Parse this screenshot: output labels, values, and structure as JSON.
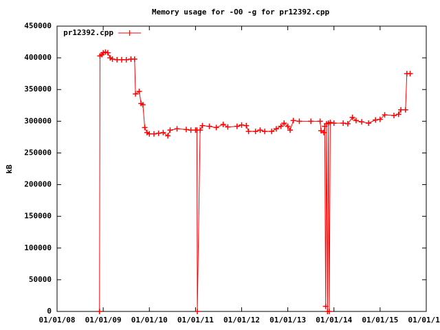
{
  "chart_data": {
    "type": "line",
    "title": "Memory usage for -O0 -g for pr12392.cpp",
    "ylabel": "kB",
    "xlim": [
      2008,
      2016
    ],
    "xticks": [
      {
        "value": 2008,
        "label": "01/01/08"
      },
      {
        "value": 2009,
        "label": "01/01/09"
      },
      {
        "value": 2010,
        "label": "01/01/10"
      },
      {
        "value": 2011,
        "label": "01/01/11"
      },
      {
        "value": 2012,
        "label": "01/01/12"
      },
      {
        "value": 2013,
        "label": "01/01/13"
      },
      {
        "value": 2014,
        "label": "01/01/14"
      },
      {
        "value": 2015,
        "label": "01/01/15"
      },
      {
        "value": 2016,
        "label": "01/01/16"
      }
    ],
    "ylim": [
      0,
      450000
    ],
    "yticks": [
      0,
      50000,
      100000,
      150000,
      200000,
      250000,
      300000,
      350000,
      400000,
      450000
    ],
    "grid": false,
    "legend": "top-left",
    "series": [
      {
        "name": "pr12392.cpp",
        "color": "#ff0000",
        "x": [
          2008.92,
          2008.93,
          2008.97,
          2009.0,
          2009.05,
          2009.1,
          2009.15,
          2009.2,
          2009.3,
          2009.4,
          2009.5,
          2009.6,
          2009.68,
          2009.7,
          2009.78,
          2009.82,
          2009.86,
          2009.9,
          2009.95,
          2010.0,
          2010.1,
          2010.2,
          2010.3,
          2010.4,
          2010.45,
          2010.6,
          2010.8,
          2010.9,
          2011.0,
          2011.03,
          2011.04,
          2011.1,
          2011.15,
          2011.3,
          2011.45,
          2011.6,
          2011.7,
          2011.9,
          2012.0,
          2012.1,
          2012.15,
          2012.3,
          2012.4,
          2012.5,
          2012.65,
          2012.75,
          2012.85,
          2012.92,
          2013.0,
          2013.05,
          2013.12,
          2013.25,
          2013.5,
          2013.7,
          2013.72,
          2013.78,
          2013.8,
          2013.82,
          2013.84,
          2013.86,
          2013.88,
          2013.9,
          2013.92,
          2014.0,
          2014.2,
          2014.3,
          2014.4,
          2014.48,
          2014.6,
          2014.75,
          2014.9,
          2015.0,
          2015.1,
          2015.3,
          2015.4,
          2015.45,
          2015.55,
          2015.58,
          2015.65
        ],
        "values": [
          0,
          403000,
          405000,
          408000,
          409000,
          408000,
          400000,
          398000,
          397000,
          397000,
          397000,
          398000,
          398000,
          343000,
          347000,
          328000,
          326000,
          290000,
          282000,
          280000,
          280000,
          281000,
          282000,
          277000,
          286000,
          288000,
          287000,
          286000,
          286000,
          286000,
          0,
          286000,
          293000,
          292000,
          290000,
          295000,
          291000,
          292000,
          294000,
          293000,
          284000,
          284000,
          286000,
          284000,
          284000,
          288000,
          292000,
          297000,
          292000,
          286000,
          301000,
          300000,
          300000,
          300000,
          285000,
          282000,
          292000,
          8000,
          296000,
          0,
          297000,
          0,
          298000,
          297000,
          297000,
          296000,
          306000,
          301000,
          299000,
          297000,
          302000,
          303000,
          310000,
          309000,
          311000,
          318000,
          318000,
          375000,
          375000
        ]
      }
    ]
  }
}
